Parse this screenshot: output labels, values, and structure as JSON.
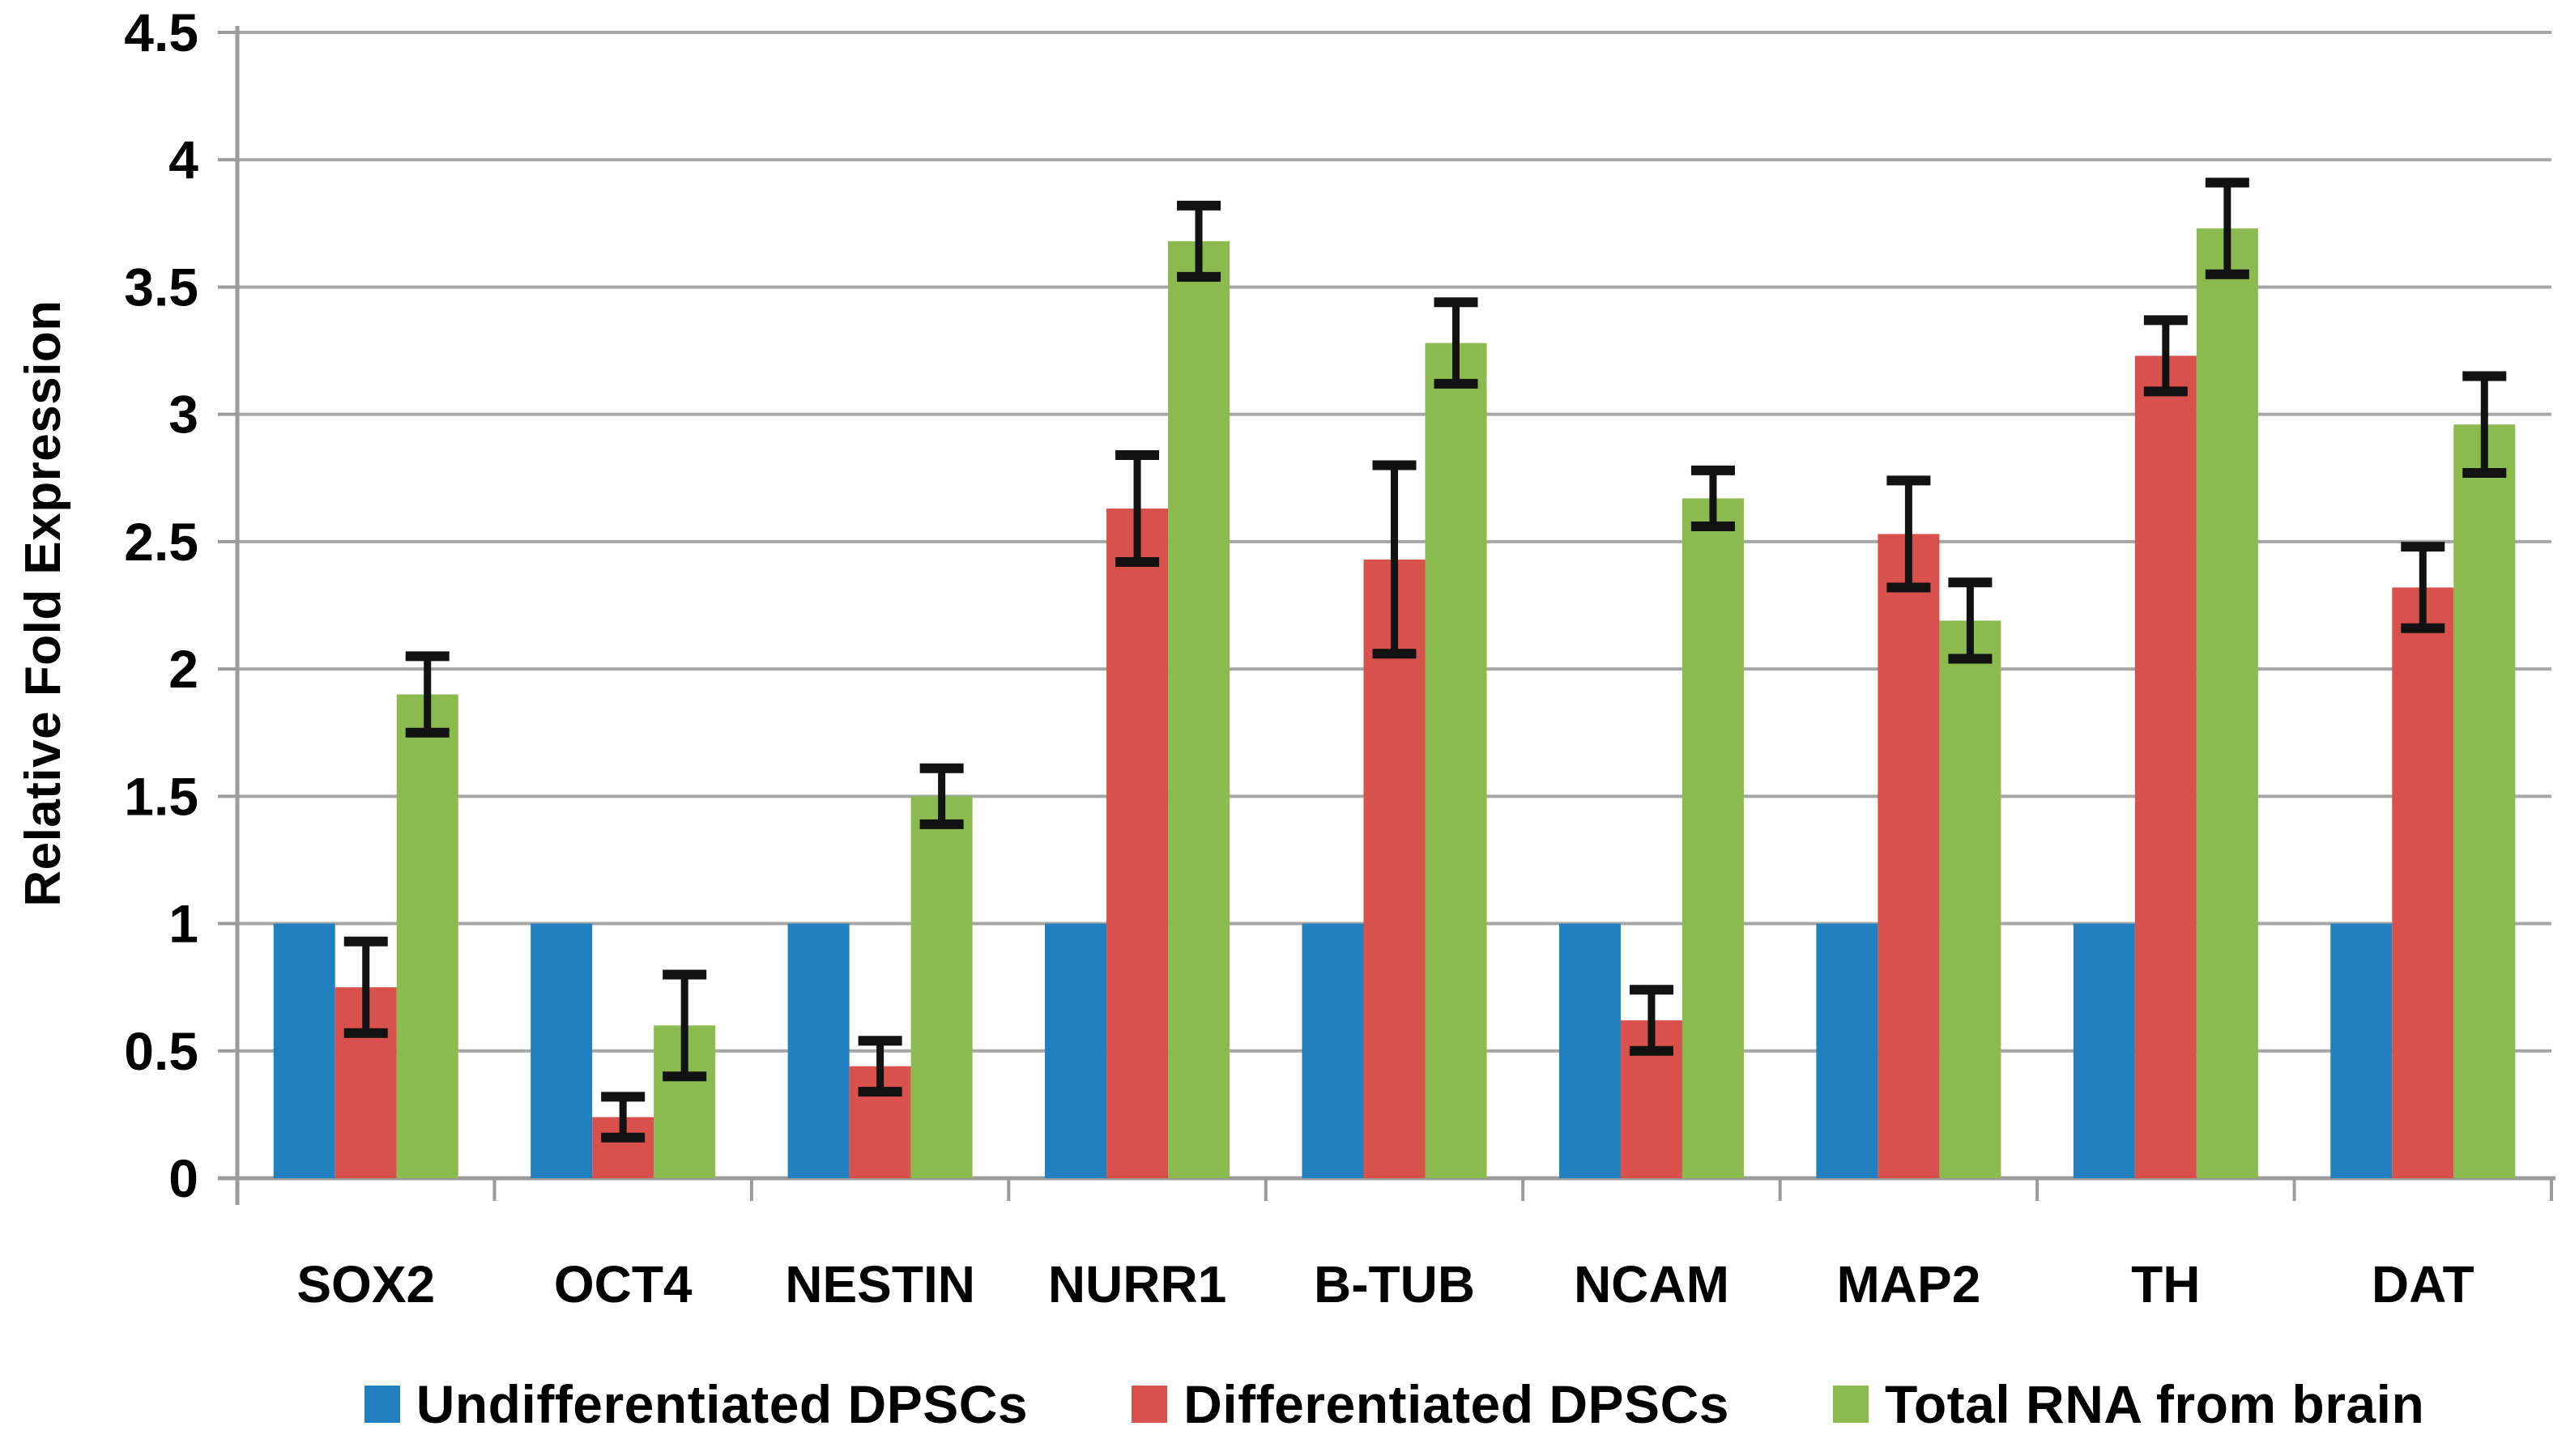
{
  "chart_data": {
    "type": "bar",
    "title": "",
    "xlabel": "",
    "ylabel": "Relative Fold Expression",
    "ylim": [
      0,
      4.5
    ],
    "y_tick_step": 0.5,
    "y_ticks": [
      "0",
      "0.5",
      "1",
      "1.5",
      "2",
      "2.5",
      "3",
      "3.5",
      "4",
      "4.5"
    ],
    "grid": true,
    "legend_position": "bottom",
    "categories": [
      "SOX2",
      "OCT4",
      "NESTIN",
      "NURR1",
      "B-TUB",
      "NCAM",
      "MAP2",
      "TH",
      "DAT"
    ],
    "series": [
      {
        "name": "Undifferentiated DPSCs",
        "color": "#2380BE",
        "values": [
          1,
          1,
          1,
          1,
          1,
          1,
          1,
          1,
          1
        ],
        "errors": null
      },
      {
        "name": "Differentiated DPSCs",
        "color": "#D8514C",
        "values": [
          0.75,
          0.24,
          0.44,
          2.63,
          2.43,
          0.62,
          2.53,
          3.23,
          2.32
        ],
        "errors": [
          0.18,
          0.08,
          0.1,
          0.21,
          0.37,
          0.12,
          0.21,
          0.14,
          0.16
        ]
      },
      {
        "name": "Total RNA from brain",
        "color": "#8BBA4E",
        "values": [
          1.9,
          0.6,
          1.5,
          3.68,
          3.28,
          2.67,
          2.19,
          3.73,
          2.96
        ],
        "errors": [
          0.15,
          0.2,
          0.11,
          0.14,
          0.16,
          0.11,
          0.15,
          0.18,
          0.19
        ]
      }
    ],
    "colors": {
      "gridline": "#A6A6A6",
      "axis": "#9B9B9B",
      "error_bar": "#121212",
      "text": "#000000",
      "background": "#FFFFFF"
    }
  }
}
